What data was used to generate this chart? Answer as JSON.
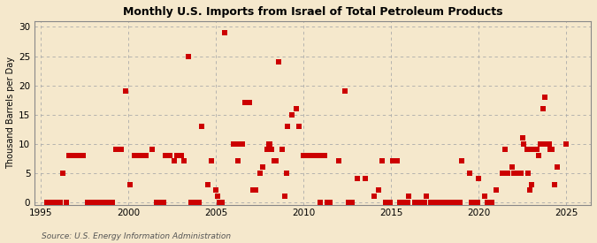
{
  "title": "Monthly U.S. Imports from Israel of Total Petroleum Products",
  "ylabel": "Thousand Barrels per Day",
  "source_text": "Source: U.S. Energy Information Administration",
  "background_color": "#f5e8cc",
  "plot_background_color": "#f5e8cc",
  "marker_color": "#cc0000",
  "marker_size": 5,
  "xlim": [
    1994.6,
    2026.4
  ],
  "ylim": [
    -0.5,
    31
  ],
  "yticks": [
    0,
    5,
    10,
    15,
    20,
    25,
    30
  ],
  "xticks": [
    1995,
    2000,
    2005,
    2010,
    2015,
    2020,
    2025
  ],
  "data_points": [
    [
      1996.25,
      5
    ],
    [
      1996.58,
      8
    ],
    [
      1996.92,
      8
    ],
    [
      1997.08,
      8
    ],
    [
      1997.42,
      8
    ],
    [
      1999.25,
      9
    ],
    [
      1999.58,
      9
    ],
    [
      1999.83,
      19
    ],
    [
      2000.08,
      3
    ],
    [
      2000.33,
      8
    ],
    [
      2000.58,
      8
    ],
    [
      2000.75,
      8
    ],
    [
      2001.0,
      8
    ],
    [
      2001.33,
      9
    ],
    [
      2002.08,
      8
    ],
    [
      2002.33,
      8
    ],
    [
      2002.58,
      7
    ],
    [
      2002.75,
      8
    ],
    [
      2003.0,
      8
    ],
    [
      2003.17,
      7
    ],
    [
      2003.42,
      25
    ],
    [
      2004.17,
      13
    ],
    [
      2004.5,
      3
    ],
    [
      2004.75,
      7
    ],
    [
      2005.0,
      2
    ],
    [
      2005.08,
      1
    ],
    [
      2005.5,
      29
    ],
    [
      2006.0,
      10
    ],
    [
      2006.17,
      10
    ],
    [
      2006.25,
      7
    ],
    [
      2006.5,
      10
    ],
    [
      2006.67,
      17
    ],
    [
      2006.92,
      17
    ],
    [
      2007.08,
      2
    ],
    [
      2007.25,
      2
    ],
    [
      2007.5,
      5
    ],
    [
      2007.67,
      6
    ],
    [
      2007.92,
      9
    ],
    [
      2008.0,
      10
    ],
    [
      2008.08,
      10
    ],
    [
      2008.17,
      9
    ],
    [
      2008.33,
      7
    ],
    [
      2008.42,
      7
    ],
    [
      2008.58,
      24
    ],
    [
      2008.75,
      9
    ],
    [
      2008.92,
      1
    ],
    [
      2009.0,
      5
    ],
    [
      2009.08,
      13
    ],
    [
      2009.33,
      15
    ],
    [
      2009.58,
      16
    ],
    [
      2009.75,
      13
    ],
    [
      2010.0,
      8
    ],
    [
      2010.17,
      8
    ],
    [
      2010.42,
      8
    ],
    [
      2010.58,
      8
    ],
    [
      2010.83,
      8
    ],
    [
      2011.0,
      8
    ],
    [
      2011.17,
      8
    ],
    [
      2012.0,
      7
    ],
    [
      2012.33,
      19
    ],
    [
      2013.08,
      4
    ],
    [
      2013.5,
      4
    ],
    [
      2014.0,
      1
    ],
    [
      2014.25,
      2
    ],
    [
      2014.5,
      7
    ],
    [
      2014.67,
      0
    ],
    [
      2014.92,
      0
    ],
    [
      2015.08,
      7
    ],
    [
      2015.33,
      7
    ],
    [
      2016.0,
      1
    ],
    [
      2017.0,
      1
    ],
    [
      2019.0,
      7
    ],
    [
      2019.5,
      5
    ],
    [
      2020.0,
      4
    ],
    [
      2020.33,
      1
    ],
    [
      2021.0,
      2
    ],
    [
      2021.33,
      5
    ],
    [
      2021.5,
      9
    ],
    [
      2021.67,
      5
    ],
    [
      2021.92,
      6
    ],
    [
      2022.0,
      5
    ],
    [
      2022.17,
      5
    ],
    [
      2022.42,
      5
    ],
    [
      2022.5,
      11
    ],
    [
      2022.58,
      10
    ],
    [
      2022.75,
      9
    ],
    [
      2022.83,
      5
    ],
    [
      2022.92,
      2
    ],
    [
      2023.0,
      3
    ],
    [
      2023.08,
      9
    ],
    [
      2023.17,
      9
    ],
    [
      2023.33,
      9
    ],
    [
      2023.42,
      8
    ],
    [
      2023.5,
      10
    ],
    [
      2023.67,
      16
    ],
    [
      2023.75,
      18
    ],
    [
      2023.83,
      10
    ],
    [
      2023.92,
      10
    ],
    [
      2024.0,
      10
    ],
    [
      2024.08,
      9
    ],
    [
      2024.17,
      9
    ],
    [
      2024.33,
      3
    ],
    [
      2024.5,
      6
    ],
    [
      2025.0,
      10
    ],
    [
      1995.33,
      0
    ],
    [
      1995.58,
      0
    ],
    [
      1995.75,
      0
    ],
    [
      1995.92,
      0
    ],
    [
      1996.08,
      0
    ],
    [
      1996.42,
      0
    ],
    [
      1997.67,
      0
    ],
    [
      1997.92,
      0
    ],
    [
      1998.08,
      0
    ],
    [
      1998.33,
      0
    ],
    [
      1998.58,
      0
    ],
    [
      1998.75,
      0
    ],
    [
      1998.92,
      0
    ],
    [
      1999.08,
      0
    ],
    [
      2001.58,
      0
    ],
    [
      2001.75,
      0
    ],
    [
      2001.92,
      0
    ],
    [
      2002.0,
      0
    ],
    [
      2003.58,
      0
    ],
    [
      2003.75,
      0
    ],
    [
      2003.92,
      0
    ],
    [
      2004.0,
      0
    ],
    [
      2005.17,
      0
    ],
    [
      2005.25,
      0
    ],
    [
      2005.33,
      0
    ],
    [
      2010.92,
      0
    ],
    [
      2011.33,
      0
    ],
    [
      2011.5,
      0
    ],
    [
      2012.58,
      0
    ],
    [
      2012.75,
      0
    ],
    [
      2015.5,
      0
    ],
    [
      2015.67,
      0
    ],
    [
      2015.92,
      0
    ],
    [
      2016.33,
      0
    ],
    [
      2016.5,
      0
    ],
    [
      2016.75,
      0
    ],
    [
      2016.92,
      0
    ],
    [
      2017.25,
      0
    ],
    [
      2017.5,
      0
    ],
    [
      2017.75,
      0
    ],
    [
      2017.92,
      0
    ],
    [
      2018.08,
      0
    ],
    [
      2018.25,
      0
    ],
    [
      2018.5,
      0
    ],
    [
      2018.75,
      0
    ],
    [
      2018.92,
      0
    ],
    [
      2019.58,
      0
    ],
    [
      2019.75,
      0
    ],
    [
      2019.92,
      0
    ],
    [
      2020.5,
      0
    ],
    [
      2020.67,
      0
    ],
    [
      2020.75,
      0
    ]
  ]
}
